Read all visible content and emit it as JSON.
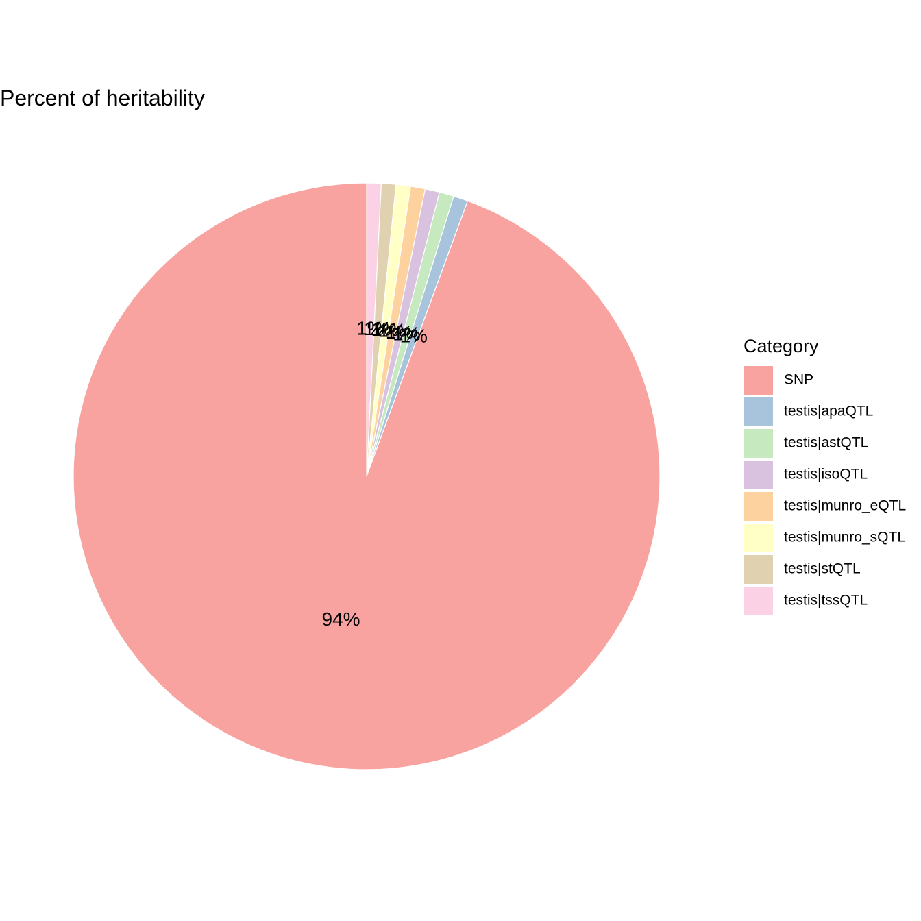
{
  "chart_data": {
    "type": "pie",
    "title": "Percent of heritability",
    "legend_title": "Category",
    "legend_position": "right",
    "direction": "clockwise",
    "start_angle_deg": 0,
    "slices": [
      {
        "category": "testis|tssQTL",
        "value": 0.8,
        "label": "1%",
        "color": "#FBD1E6"
      },
      {
        "category": "testis|stQTL",
        "value": 0.8,
        "label": "1%",
        "color": "#E0D2B0"
      },
      {
        "category": "testis|munro_sQTL",
        "value": 0.8,
        "label": "1%",
        "color": "#FFFFC6"
      },
      {
        "category": "testis|munro_eQTL",
        "value": 0.8,
        "label": "1%",
        "color": "#FDD29F"
      },
      {
        "category": "testis|isoQTL",
        "value": 0.8,
        "label": "1%",
        "color": "#D8C2DF"
      },
      {
        "category": "testis|astQTL",
        "value": 0.8,
        "label": "1%",
        "color": "#C7E9C0"
      },
      {
        "category": "testis|apaQTL",
        "value": 0.8,
        "label": "1%",
        "color": "#A8C4DD"
      },
      {
        "category": "SNP",
        "value": 94.4,
        "label": "94%",
        "color": "#F8A39F"
      }
    ],
    "legend_order": [
      "SNP",
      "testis|apaQTL",
      "testis|astQTL",
      "testis|isoQTL",
      "testis|munro_eQTL",
      "testis|munro_sQTL",
      "testis|stQTL",
      "testis|tssQTL"
    ]
  }
}
